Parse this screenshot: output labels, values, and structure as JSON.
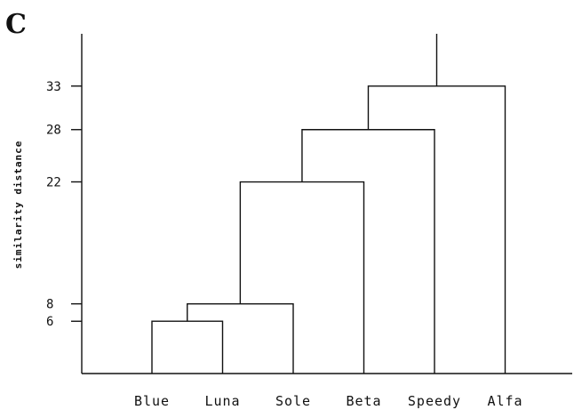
{
  "panel_label": "C",
  "chart_data": {
    "type": "dendrogram",
    "title": "",
    "xlabel": "",
    "ylabel": "similarity distance",
    "leaves": [
      "Blue",
      "Luna",
      "Sole",
      "Beta",
      "Speedy",
      "Alfa"
    ],
    "yticks": [
      6,
      8,
      22,
      28,
      33
    ],
    "ylim": [
      0,
      39
    ],
    "merges": [
      {
        "left": "Blue",
        "right": "Luna",
        "height": 6
      },
      {
        "left": "Blue+Luna",
        "right": "Sole",
        "height": 8
      },
      {
        "left": "Blue+Luna+Sole",
        "right": "Beta",
        "height": 22
      },
      {
        "left": "Blue+Luna+Sole+Beta",
        "right": "Speedy",
        "height": 28
      },
      {
        "left": "Blue+Luna+Sole+Beta+Speedy",
        "right": "Alfa",
        "height": 33
      }
    ]
  }
}
